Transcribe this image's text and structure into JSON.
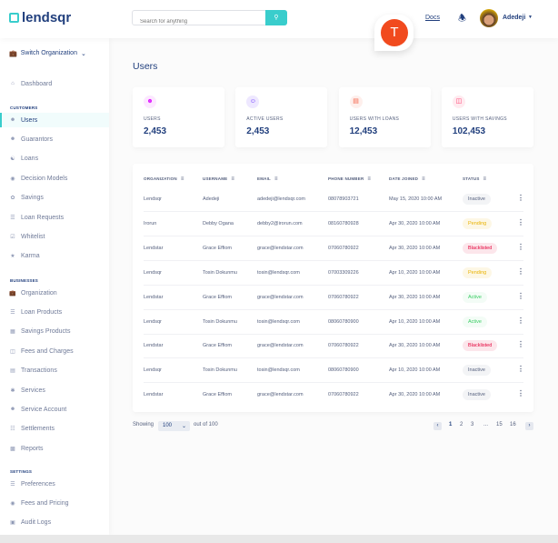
{
  "header": {
    "logo": "lendsqr",
    "search_placeholder": "Search for anything",
    "docs": "Docs",
    "user_name": "Adedeji",
    "floating_avatar_letter": "T"
  },
  "sidebar": {
    "switch_org": "Switch Organization",
    "dashboard": "Dashboard",
    "sections": [
      {
        "title": "CUSTOMERS",
        "items": [
          "Users",
          "Guarantors",
          "Loans",
          "Decision Models",
          "Savings",
          "Loan Requests",
          "Whitelist",
          "Karma"
        ]
      },
      {
        "title": "BUSINESSES",
        "items": [
          "Organization",
          "Loan Products",
          "Savings Products",
          "Fees and Charges",
          "Transactions",
          "Services",
          "Service Account",
          "Settlements",
          "Reports"
        ]
      },
      {
        "title": "SETTINGS",
        "items": [
          "Preferences",
          "Fees and Pricing",
          "Audit Logs"
        ]
      }
    ],
    "active": "Users"
  },
  "page": {
    "title": "Users"
  },
  "cards": [
    {
      "label": "USERS",
      "value": "2,453",
      "color": "#df18ff",
      "bg": "#fce8ff"
    },
    {
      "label": "ACTIVE USERS",
      "value": "2,453",
      "color": "#5718ff",
      "bg": "#eee8ff"
    },
    {
      "label": "USERS WITH LOANS",
      "value": "12,453",
      "color": "#f55f44",
      "bg": "#feefec"
    },
    {
      "label": "USERS WITH SAVINGS",
      "value": "102,453",
      "color": "#ff3366",
      "bg": "#ffebf0"
    }
  ],
  "table": {
    "headers": [
      "ORGANIZATION",
      "USERNAME",
      "EMAIL",
      "PHONE NUMBER",
      "DATE JOINED",
      "STATUS"
    ],
    "rows": [
      [
        "Lendsqr",
        "Adedeji",
        "adedeji@lendsqr.com",
        "08078903721",
        "May 15, 2020 10:00 AM",
        "Inactive"
      ],
      [
        "Irorun",
        "Debby Ogana",
        "debby2@irorun.com",
        "08160780928",
        "Apr 30, 2020 10:00 AM",
        "Pending"
      ],
      [
        "Lendstar",
        "Grace Effiom",
        "grace@lendstar.com",
        "07060780922",
        "Apr 30, 2020 10:00 AM",
        "Blacklisted"
      ],
      [
        "Lendsqr",
        "Tosin Dokunmu",
        "tosin@lendsqr.com",
        "07003309226",
        "Apr 10, 2020 10:00 AM",
        "Pending"
      ],
      [
        "Lendstar",
        "Grace Effiom",
        "grace@lendstar.com",
        "07060780922",
        "Apr 30, 2020 10:00 AM",
        "Active"
      ],
      [
        "Lendsqr",
        "Tosin Dokunmu",
        "tosin@lendsqr.com",
        "08060780900",
        "Apr 10, 2020 10:00 AM",
        "Active"
      ],
      [
        "Lendstar",
        "Grace Effiom",
        "grace@lendstar.com",
        "07060780922",
        "Apr 30, 2020 10:00 AM",
        "Blacklisted"
      ],
      [
        "Lendsqr",
        "Tosin Dokunmu",
        "tosin@lendsqr.com",
        "08060780900",
        "Apr 10, 2020 10:00 AM",
        "Inactive"
      ],
      [
        "Lendstar",
        "Grace Effiom",
        "grace@lendstar.com",
        "07060780922",
        "Apr 30, 2020 10:00 AM",
        "Inactive"
      ]
    ]
  },
  "status_colors": {
    "Inactive": [
      "#545f7d",
      "#f3f4f6"
    ],
    "Pending": [
      "#e9b200",
      "#fdf7e5"
    ],
    "Blacklisted": [
      "#e4033b",
      "#fce6eb"
    ],
    "Active": [
      "#39cd62",
      "#f3fcf6"
    ]
  },
  "pagination": {
    "showing": "Showing",
    "per_page": "100",
    "out_of": "out of 100",
    "pages": [
      "1",
      "2",
      "3",
      "...",
      "15",
      "16"
    ],
    "current": "1"
  }
}
